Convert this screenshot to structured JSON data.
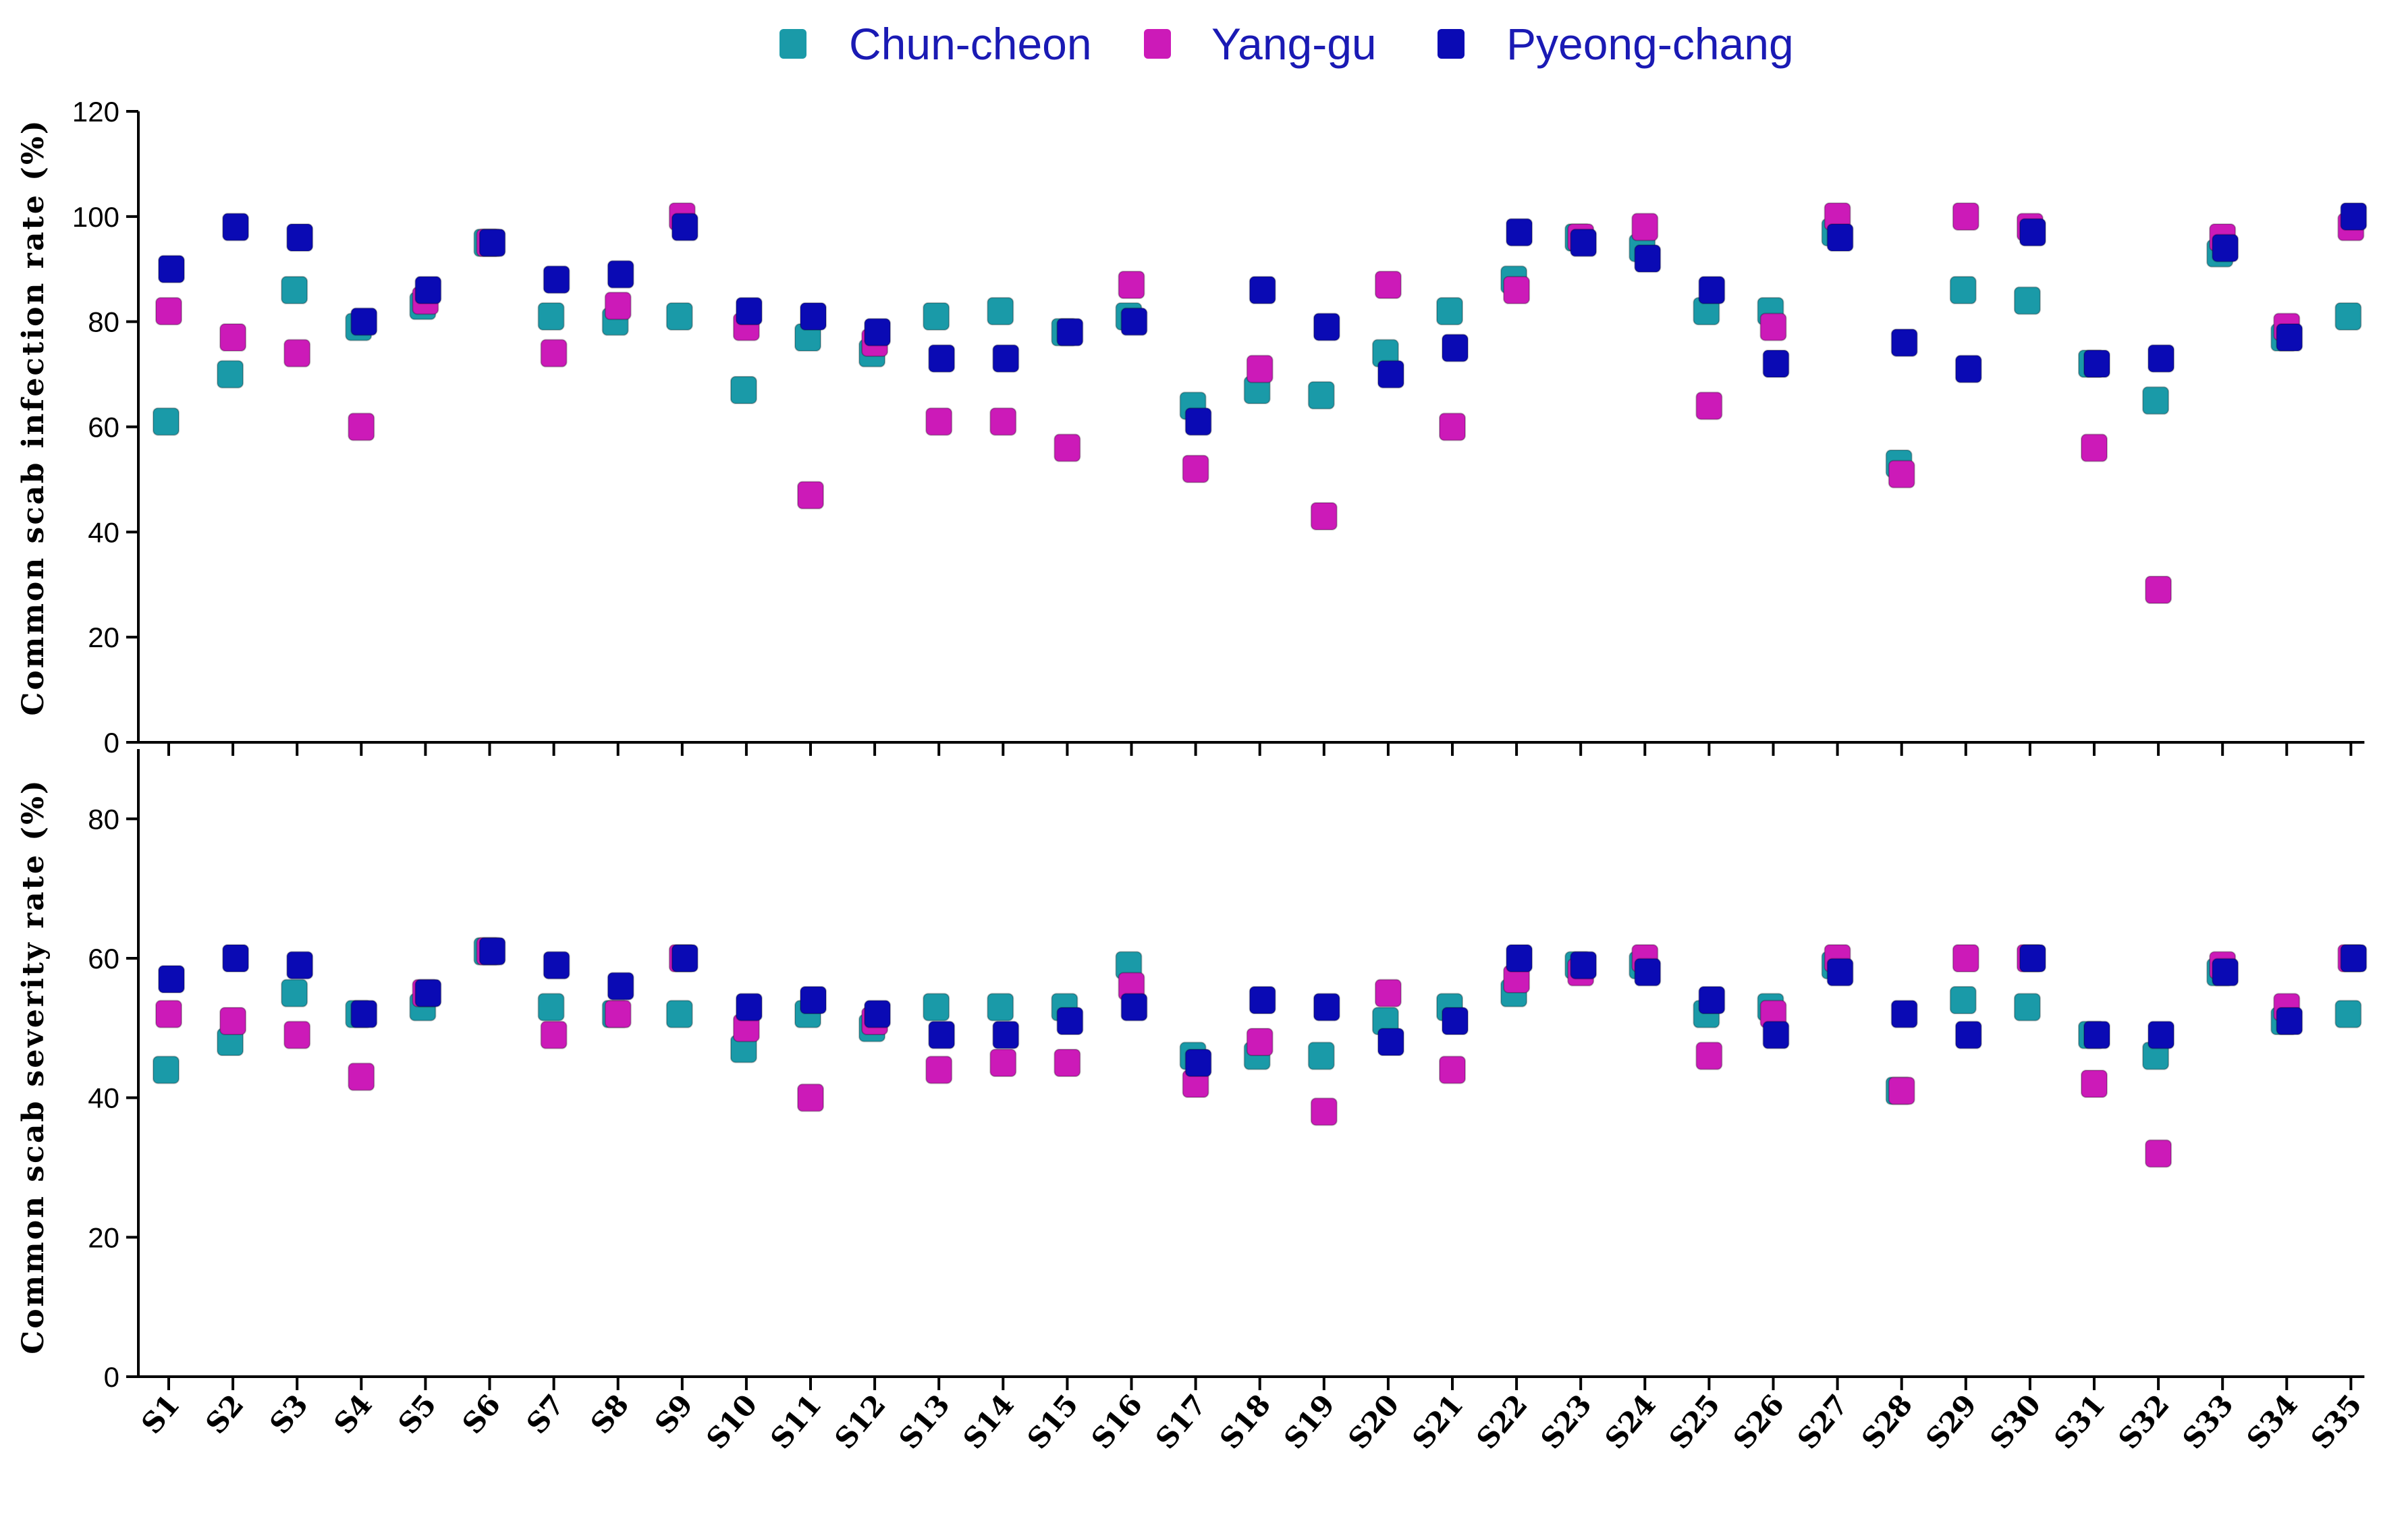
{
  "legend": [
    {
      "name": "Chun-cheon",
      "color": "#1a9aa8"
    },
    {
      "name": "Yang-gu",
      "color": "#cc1ab8"
    },
    {
      "name": "Pyeong-chang",
      "color": "#0a0ab4"
    }
  ],
  "colors": {
    "legend_text": "#1a1ab4",
    "axis": "#000000"
  },
  "chart_data": [
    {
      "type": "scatter",
      "ylabel": "Common scab infection rate (%)",
      "ylim": [
        0,
        120
      ],
      "yticks": [
        0,
        20,
        40,
        60,
        80,
        100,
        120
      ],
      "categories": [
        "S1",
        "S2",
        "S3",
        "S4",
        "S5",
        "S6",
        "S7",
        "S8",
        "S9",
        "S10",
        "S11",
        "S12",
        "S13",
        "S14",
        "S15",
        "S16",
        "S17",
        "S18",
        "S19",
        "S20",
        "S21",
        "S22",
        "S23",
        "S24",
        "S25",
        "S26",
        "S27",
        "S28",
        "S29",
        "S30",
        "S31",
        "S32",
        "S33",
        "S34",
        "S35"
      ],
      "series": [
        {
          "name": "Chun-cheon",
          "values": [
            61,
            70,
            86,
            79,
            83,
            95,
            81,
            80,
            81,
            67,
            77,
            74,
            81,
            82,
            78,
            81,
            64,
            67,
            66,
            74,
            82,
            88,
            96,
            94,
            82,
            82,
            97,
            53,
            86,
            84,
            72,
            65,
            93,
            77,
            81
          ]
        },
        {
          "name": "Yang-gu",
          "values": [
            82,
            77,
            74,
            60,
            84,
            95,
            74,
            83,
            100,
            79,
            47,
            76,
            61,
            61,
            56,
            87,
            52,
            71,
            43,
            87,
            60,
            86,
            96,
            98,
            64,
            79,
            100,
            51,
            100,
            98,
            56,
            29,
            96,
            79,
            98
          ]
        },
        {
          "name": "Pyeong-chang",
          "values": [
            90,
            98,
            96,
            80,
            86,
            95,
            88,
            89,
            98,
            82,
            81,
            78,
            73,
            73,
            78,
            80,
            61,
            86,
            79,
            70,
            75,
            97,
            95,
            92,
            86,
            72,
            96,
            76,
            71,
            97,
            72,
            73,
            94,
            77,
            100
          ]
        }
      ]
    },
    {
      "type": "scatter",
      "ylabel": "Common scab severity rate (%)",
      "ylim": [
        0,
        90
      ],
      "yticks": [
        0,
        20,
        40,
        60,
        80
      ],
      "categories": [
        "S1",
        "S2",
        "S3",
        "S4",
        "S5",
        "S6",
        "S7",
        "S8",
        "S9",
        "S10",
        "S11",
        "S12",
        "S13",
        "S14",
        "S15",
        "S16",
        "S17",
        "S18",
        "S19",
        "S20",
        "S21",
        "S22",
        "S23",
        "S24",
        "S25",
        "S26",
        "S27",
        "S28",
        "S29",
        "S30",
        "S31",
        "S32",
        "S33",
        "S34",
        "S35"
      ],
      "series": [
        {
          "name": "Chun-cheon",
          "values": [
            44,
            48,
            55,
            52,
            53,
            61,
            53,
            52,
            52,
            47,
            52,
            50,
            53,
            53,
            53,
            59,
            46,
            46,
            46,
            51,
            53,
            55,
            59,
            59,
            52,
            53,
            59,
            41,
            54,
            53,
            49,
            46,
            58,
            51,
            52
          ]
        },
        {
          "name": "Yang-gu",
          "values": [
            52,
            51,
            49,
            43,
            55,
            61,
            49,
            52,
            60,
            50,
            40,
            51,
            44,
            45,
            45,
            56,
            42,
            48,
            38,
            55,
            44,
            57,
            58,
            60,
            46,
            52,
            60,
            41,
            60,
            60,
            42,
            32,
            59,
            53,
            60
          ]
        },
        {
          "name": "Pyeong-chang",
          "values": [
            57,
            60,
            59,
            52,
            55,
            61,
            59,
            56,
            60,
            53,
            54,
            52,
            49,
            49,
            51,
            53,
            45,
            54,
            53,
            48,
            51,
            60,
            59,
            58,
            54,
            49,
            58,
            52,
            49,
            60,
            49,
            49,
            58,
            51,
            60
          ]
        }
      ]
    }
  ]
}
